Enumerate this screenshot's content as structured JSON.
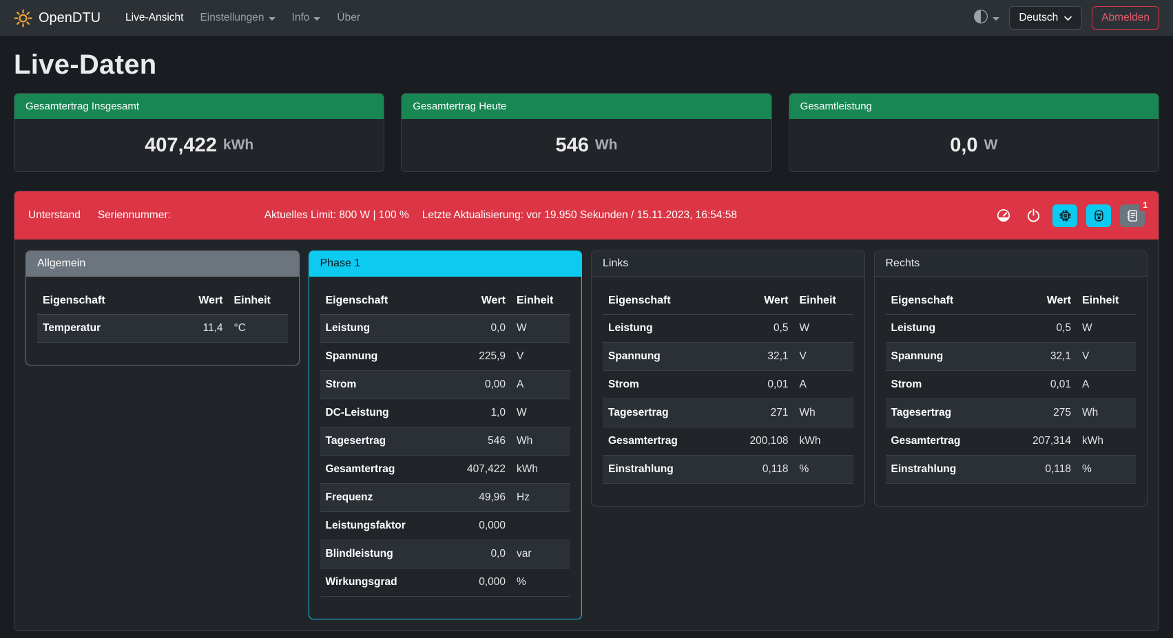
{
  "navbar": {
    "brand": "OpenDTU",
    "items": [
      {
        "id": "live-ansicht",
        "label": "Live-Ansicht",
        "active": true,
        "dropdown": false
      },
      {
        "id": "einstellungen",
        "label": "Einstellungen",
        "active": false,
        "dropdown": true
      },
      {
        "id": "info",
        "label": "Info",
        "active": false,
        "dropdown": true
      },
      {
        "id": "ueber",
        "label": "Über",
        "active": false,
        "dropdown": false
      }
    ],
    "theme_icon": "circle-half-icon",
    "language_label": "Deutsch",
    "logout_label": "Abmelden"
  },
  "page": {
    "title": "Live-Daten"
  },
  "summary_cards": [
    {
      "label": "Gesamtertrag Insgesamt",
      "value": "407,422",
      "unit": "kWh"
    },
    {
      "label": "Gesamtertrag Heute",
      "value": "546",
      "unit": "Wh"
    },
    {
      "label": "Gesamtleistung",
      "value": "0,0",
      "unit": "W"
    }
  ],
  "inverter": {
    "name": "Unterstand",
    "serial_label": "Seriennummer:",
    "limit_text": "Aktuelles Limit: 800 W | 100 %",
    "last_update_text": "Letzte Aktualisierung: vor 19.950 Sekunden / 15.11.2023, 16:54:58",
    "event_count": "1",
    "icons": [
      "speedometer-icon",
      "power-icon",
      "cpu-icon",
      "outlet-icon",
      "journal-text-icon"
    ]
  },
  "tables": [
    {
      "id": "allgemein",
      "title": "Allgemein",
      "variant": "secondary",
      "stripe": "odd",
      "columns": [
        "Eigenschaft",
        "Wert",
        "Einheit"
      ],
      "rows": [
        [
          "Temperatur",
          "11,4",
          "°C"
        ]
      ]
    },
    {
      "id": "phase-1",
      "title": "Phase 1",
      "variant": "info",
      "stripe": "odd",
      "columns": [
        "Eigenschaft",
        "Wert",
        "Einheit"
      ],
      "rows": [
        [
          "Leistung",
          "0,0",
          "W"
        ],
        [
          "Spannung",
          "225,9",
          "V"
        ],
        [
          "Strom",
          "0,00",
          "A"
        ],
        [
          "DC-Leistung",
          "1,0",
          "W"
        ],
        [
          "Tagesertrag",
          "546",
          "Wh"
        ],
        [
          "Gesamtertrag",
          "407,422",
          "kWh"
        ],
        [
          "Frequenz",
          "49,96",
          "Hz"
        ],
        [
          "Leistungsfaktor",
          "0,000",
          ""
        ],
        [
          "Blindleistung",
          "0,0",
          "var"
        ],
        [
          "Wirkungsgrad",
          "0,000",
          "%"
        ]
      ]
    },
    {
      "id": "links",
      "title": "Links",
      "variant": "default",
      "stripe": "even",
      "columns": [
        "Eigenschaft",
        "Wert",
        "Einheit"
      ],
      "rows": [
        [
          "Leistung",
          "0,5",
          "W"
        ],
        [
          "Spannung",
          "32,1",
          "V"
        ],
        [
          "Strom",
          "0,01",
          "A"
        ],
        [
          "Tagesertrag",
          "271",
          "Wh"
        ],
        [
          "Gesamtertrag",
          "200,108",
          "kWh"
        ],
        [
          "Einstrahlung",
          "0,118",
          "%"
        ]
      ]
    },
    {
      "id": "rechts",
      "title": "Rechts",
      "variant": "default",
      "stripe": "even",
      "columns": [
        "Eigenschaft",
        "Wert",
        "Einheit"
      ],
      "rows": [
        [
          "Leistung",
          "0,5",
          "W"
        ],
        [
          "Spannung",
          "32,1",
          "V"
        ],
        [
          "Strom",
          "0,01",
          "A"
        ],
        [
          "Tagesertrag",
          "275",
          "Wh"
        ],
        [
          "Gesamtertrag",
          "207,314",
          "kWh"
        ],
        [
          "Einstrahlung",
          "0,118",
          "%"
        ]
      ]
    }
  ],
  "colors": {
    "success": "#198754",
    "danger": "#dc3545",
    "info": "#0dcaf0",
    "secondary": "#6c757d",
    "brand_sun": "#f0a43a"
  }
}
